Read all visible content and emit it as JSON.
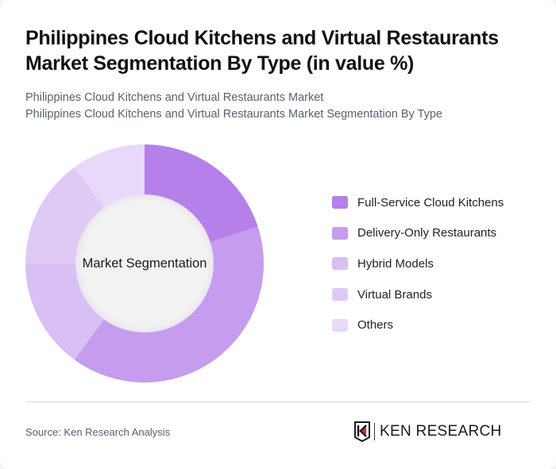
{
  "header": {
    "title": "Philippines Cloud Kitchens and Virtual Restaurants Market Segmentation By Type (in value %)",
    "subtitle_line1": "Philippines Cloud Kitchens and Virtual Restaurants Market",
    "subtitle_line2": "Philippines Cloud Kitchens and Virtual Restaurants Market Segmentation By Type"
  },
  "chart": {
    "center_label": "Market Segmentation"
  },
  "legend": [
    {
      "label": "Full-Service Cloud Kitchens",
      "color": "#b580ea"
    },
    {
      "label": "Delivery-Only Restaurants",
      "color": "#c59cee"
    },
    {
      "label": "Hybrid Models",
      "color": "#d8bff4"
    },
    {
      "label": "Virtual Brands",
      "color": "#dfcaf5"
    },
    {
      "label": "Others",
      "color": "#e8d8f9"
    }
  ],
  "footer": {
    "source": "Source: Ken Research Analysis",
    "logo_text": "KEN RESEARCH"
  },
  "chart_data": {
    "type": "pie",
    "subtype": "donut",
    "title": "Philippines Cloud Kitchens and Virtual Restaurants Market Segmentation By Type (in value %)",
    "center_label": "Market Segmentation",
    "categories": [
      "Full-Service Cloud Kitchens",
      "Delivery-Only Restaurants",
      "Hybrid Models",
      "Virtual Brands",
      "Others"
    ],
    "values": [
      20,
      40,
      15,
      15,
      10
    ],
    "colors": [
      "#b580ea",
      "#c59cee",
      "#d8bff4",
      "#dfcaf5",
      "#e8d8f9"
    ],
    "start_angle": "12 o'clock, clockwise",
    "legend_position": "right"
  }
}
